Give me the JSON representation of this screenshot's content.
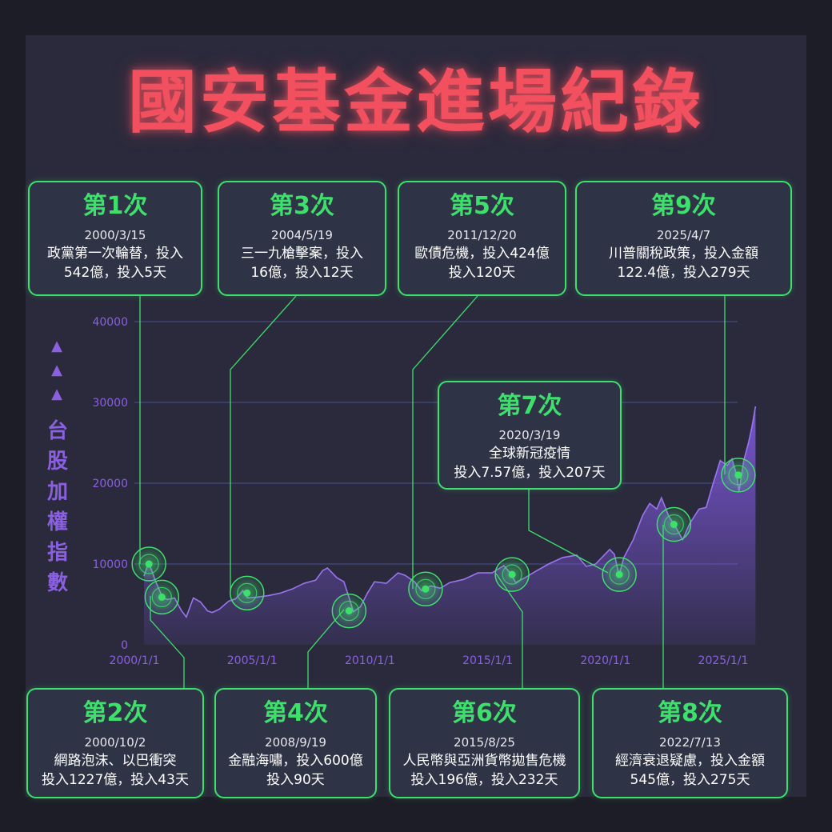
{
  "title": "國安基金進場紀錄",
  "y_axis_label": "台股加權指數",
  "y_arrows": [
    "▲",
    "▲",
    "▲"
  ],
  "colors": {
    "background": "#1d1d27",
    "panel": "#2a2a3c",
    "title": "#f2505e",
    "accent": "#3ee06c",
    "area": "#7b56d8",
    "axis": "#8a5fe0"
  },
  "events": [
    {
      "label": "第1次",
      "date": "2000/3/15",
      "lines": [
        "政黨第一次輪替，投入",
        "542億，投入5天"
      ]
    },
    {
      "label": "第2次",
      "date": "2000/10/2",
      "lines": [
        "網路泡沫、以巴衝突",
        "投入1227億，投入43天"
      ]
    },
    {
      "label": "第3次",
      "date": "2004/5/19",
      "lines": [
        "三一九槍擊案，投入",
        "16億，投入12天"
      ]
    },
    {
      "label": "第4次",
      "date": "2008/9/19",
      "lines": [
        "金融海嘯，投入600億",
        "投入90天"
      ]
    },
    {
      "label": "第5次",
      "date": "2011/12/20",
      "lines": [
        "歐債危機，投入424億",
        "投入120天"
      ]
    },
    {
      "label": "第6次",
      "date": "2015/8/25",
      "lines": [
        "人民幣與亞洲貨幣拋售危機",
        "投入196億，投入232天"
      ]
    },
    {
      "label": "第7次",
      "date": "2020/3/19",
      "lines": [
        "全球新冠疫情",
        "投入7.57億，投入207天"
      ]
    },
    {
      "label": "第8次",
      "date": "2022/7/13",
      "lines": [
        "經濟衰退疑慮，投入金額",
        "545億，投入275天"
      ]
    },
    {
      "label": "第9次",
      "date": "2025/4/7",
      "lines": [
        "川普關稅政策，投入金額",
        "122.4億，投入279天"
      ]
    }
  ],
  "chart_data": {
    "type": "area",
    "ylim": [
      0,
      40000
    ],
    "yticks": [
      "0",
      "10000",
      "20000",
      "30000",
      "40000"
    ],
    "xticks": [
      "2000/1/1",
      "2005/1/1",
      "2010/1/1",
      "2015/1/1",
      "2020/1/1",
      "2025/1/1"
    ],
    "x": [
      2000.0,
      2000.2,
      2000.5,
      2000.8,
      2001.0,
      2001.3,
      2001.6,
      2001.8,
      2002.1,
      2002.4,
      2002.7,
      2002.9,
      2003.2,
      2003.6,
      2003.9,
      2004.2,
      2004.4,
      2004.8,
      2005.3,
      2005.8,
      2006.3,
      2006.8,
      2007.3,
      2007.6,
      2007.8,
      2008.2,
      2008.5,
      2008.7,
      2008.9,
      2009.2,
      2009.5,
      2009.8,
      2010.3,
      2010.8,
      2011.1,
      2011.5,
      2011.8,
      2012.2,
      2012.6,
      2013.0,
      2013.6,
      2014.2,
      2014.8,
      2015.3,
      2015.6,
      2015.8,
      2016.2,
      2016.6,
      2017.2,
      2017.8,
      2018.4,
      2018.8,
      2019.2,
      2019.8,
      2020.0,
      2020.2,
      2020.4,
      2020.8,
      2021.2,
      2021.5,
      2021.8,
      2022.0,
      2022.3,
      2022.6,
      2022.9,
      2023.2,
      2023.6,
      2023.9,
      2024.2,
      2024.5,
      2024.8,
      2025.0,
      2025.2,
      2025.3,
      2025.5,
      2025.7,
      2025.85,
      2026.0
    ],
    "values": [
      8500,
      10200,
      7800,
      5800,
      5600,
      5800,
      4200,
      3450,
      5800,
      5300,
      4200,
      4000,
      4400,
      5400,
      5700,
      6700,
      5800,
      5900,
      6100,
      6400,
      6900,
      7600,
      8000,
      9200,
      9500,
      8300,
      7800,
      6000,
      4100,
      4700,
      6400,
      7800,
      7600,
      8900,
      8600,
      7800,
      6700,
      7300,
      7000,
      7700,
      8100,
      8900,
      8900,
      9800,
      8800,
      7700,
      8300,
      9000,
      10000,
      10800,
      11100,
      9700,
      10000,
      11800,
      11200,
      8600,
      10800,
      13000,
      16000,
      17500,
      16800,
      18200,
      16000,
      14600,
      13000,
      15000,
      16800,
      17000,
      20000,
      22800,
      22200,
      23000,
      21000,
      19000,
      22800,
      25000,
      27000,
      29500
    ],
    "annotations": [
      {
        "event": "第1次",
        "x": 2000.21,
        "y": 10000
      },
      {
        "event": "第2次",
        "x": 2000.76,
        "y": 5900
      },
      {
        "event": "第3次",
        "x": 2004.38,
        "y": 6400
      },
      {
        "event": "第4次",
        "x": 2008.72,
        "y": 4200
      },
      {
        "event": "第5次",
        "x": 2011.97,
        "y": 6900
      },
      {
        "event": "第6次",
        "x": 2015.65,
        "y": 8700
      },
      {
        "event": "第7次",
        "x": 2020.21,
        "y": 8700
      },
      {
        "event": "第8次",
        "x": 2022.53,
        "y": 14900
      },
      {
        "event": "第9次",
        "x": 2025.27,
        "y": 21000
      }
    ]
  }
}
